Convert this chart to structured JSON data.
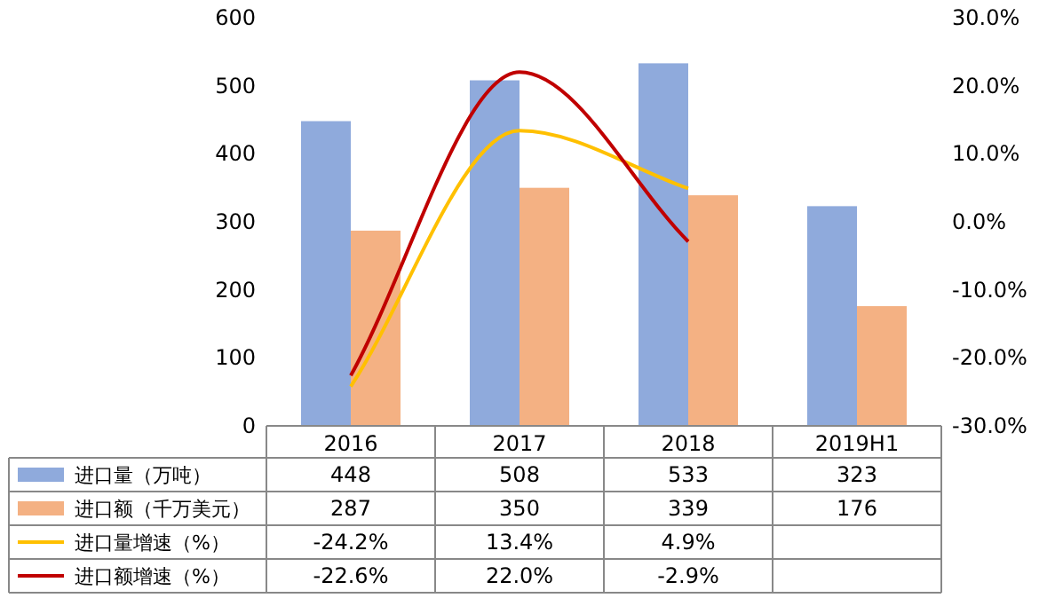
{
  "chart_data": {
    "type": "bar",
    "categories": [
      "2016",
      "2017",
      "2018",
      "2019H1"
    ],
    "series": [
      {
        "name": "进口量（万吨）",
        "color": "#8faadc",
        "values": [
          448,
          508,
          533,
          323
        ],
        "value_labels": [
          "448",
          "508",
          "533",
          "323"
        ]
      },
      {
        "name": "进口额（千万美元）",
        "color": "#f4b183",
        "values": [
          287,
          350,
          339,
          176
        ],
        "value_labels": [
          "287",
          "350",
          "339",
          "176"
        ]
      },
      {
        "name": "进口量增速（%）",
        "type": "line",
        "axis": "y2",
        "color": "#ffc000",
        "values": [
          -24.2,
          13.4,
          4.9,
          null
        ],
        "value_labels": [
          "-24.2%",
          "13.4%",
          "4.9%",
          null
        ]
      },
      {
        "name": "进口额增速（%）",
        "type": "line",
        "axis": "y2",
        "color": "#c00000",
        "values": [
          -22.6,
          22.0,
          -2.9,
          null
        ],
        "value_labels": [
          "-22.6%",
          "22.0%",
          "-2.9%",
          null
        ]
      }
    ],
    "ylim": [
      0,
      600
    ],
    "yticks": [
      0,
      100,
      200,
      300,
      400,
      500,
      600
    ],
    "y2lim": [
      -30,
      30
    ],
    "y2ticks": [
      {
        "value": -30,
        "label": "-30.0%"
      },
      {
        "value": -20,
        "label": "-20.0%"
      },
      {
        "value": -10,
        "label": "-10.0%"
      },
      {
        "value": 0,
        "label": "0.0%"
      },
      {
        "value": 10,
        "label": "10.0%"
      },
      {
        "value": 20,
        "label": "20.0%"
      },
      {
        "value": 30,
        "label": "30.0%"
      }
    ],
    "legend": "bottom"
  }
}
